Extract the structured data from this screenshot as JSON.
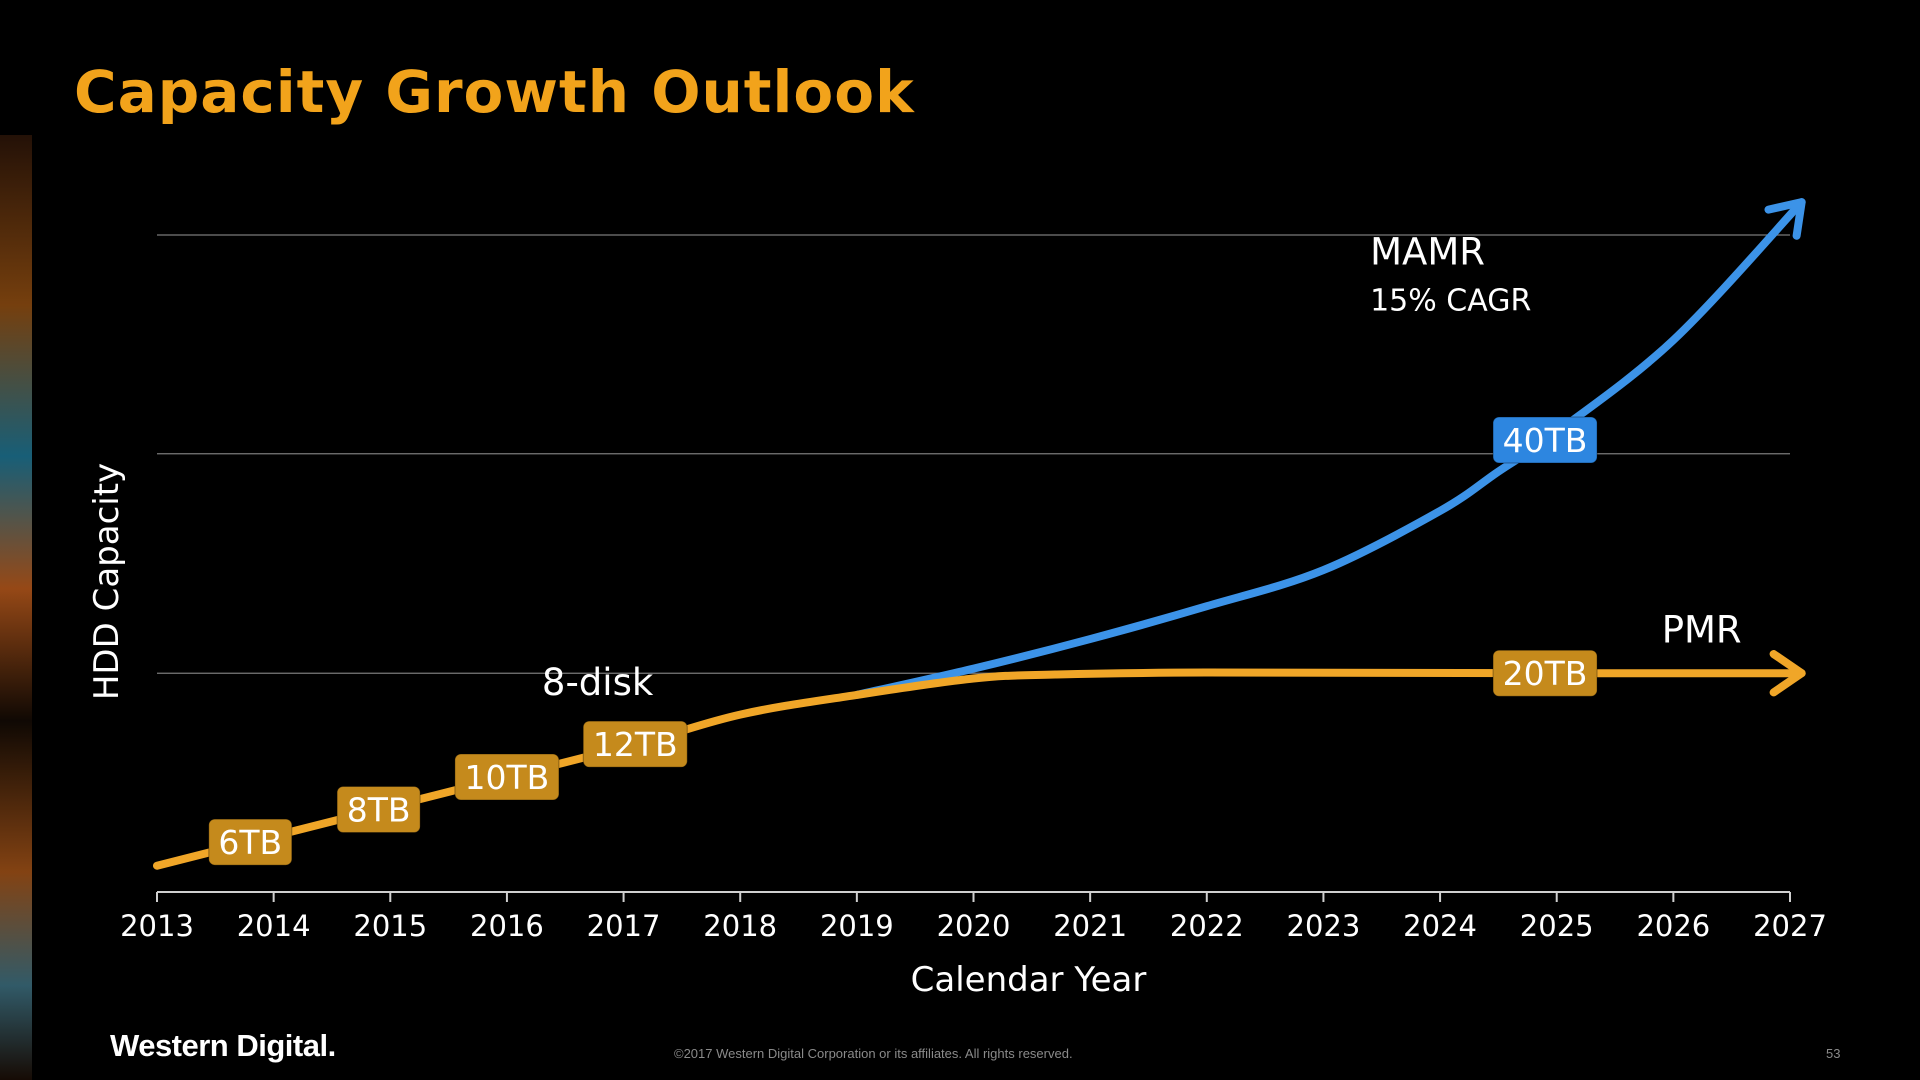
{
  "title": "Capacity Growth Outlook",
  "footer": {
    "logo": "Western Digital.",
    "copyright": "©2017 Western Digital Corporation or its affiliates. All rights reserved.",
    "page_number": "53"
  },
  "colors": {
    "title": "#f2a31b",
    "pmr": "#f0a628",
    "mamr": "#3c93e8",
    "badge_gold": "#c58a1c",
    "badge_blue": "#2d86e0",
    "grid": "#7a7a7a"
  },
  "chart_data": {
    "type": "line",
    "xlabel": "Calendar Year",
    "ylabel": "HDD Capacity",
    "xlim": [
      2013,
      2027
    ],
    "x_ticks": [
      "2013",
      "2014",
      "2015",
      "2016",
      "2017",
      "2018",
      "2019",
      "2020",
      "2021",
      "2022",
      "2023",
      "2024",
      "2025",
      "2026",
      "2027"
    ],
    "ylim": [
      0,
      1
    ],
    "y_gridlines": [
      0.333,
      0.667,
      1.0
    ],
    "grid": true,
    "y_tick_labels_shown": false,
    "series": [
      {
        "name": "PMR",
        "color": "#f0a628",
        "points": [
          [
            2013,
            0.04
          ],
          [
            2015,
            0.13
          ],
          [
            2017,
            0.22
          ],
          [
            2018,
            0.27
          ],
          [
            2019,
            0.3
          ],
          [
            2020,
            0.325
          ],
          [
            2020.7,
            0.331
          ],
          [
            2022,
            0.334
          ],
          [
            2025,
            0.333
          ],
          [
            2027.1,
            0.333
          ]
        ]
      },
      {
        "name": "MAMR",
        "color": "#3c93e8",
        "points": [
          [
            2019,
            0.3
          ],
          [
            2020,
            0.34
          ],
          [
            2021,
            0.385
          ],
          [
            2022,
            0.435
          ],
          [
            2023,
            0.49
          ],
          [
            2024,
            0.58
          ],
          [
            2024.5,
            0.64
          ],
          [
            2025,
            0.7
          ],
          [
            2026,
            0.84
          ],
          [
            2027.1,
            1.05
          ]
        ]
      }
    ],
    "badges": [
      {
        "label": "6TB",
        "x": 2013.8,
        "series": "PMR"
      },
      {
        "label": "8TB",
        "x": 2014.9,
        "series": "PMR"
      },
      {
        "label": "10TB",
        "x": 2016.0,
        "series": "PMR"
      },
      {
        "label": "12TB",
        "x": 2017.1,
        "series": "PMR"
      },
      {
        "label": "20TB",
        "x": 2024.9,
        "series": "PMR"
      },
      {
        "label": "40TB",
        "x": 2024.9,
        "series": "MAMR"
      }
    ],
    "annotations": [
      {
        "text": "8-disk",
        "x": 2016.3,
        "y": 0.3
      },
      {
        "text": "PMR",
        "x": 2025.9,
        "y": 0.38
      },
      {
        "text": "MAMR",
        "x": 2023.4,
        "y": 0.955
      },
      {
        "text": "15% CAGR",
        "x": 2023.4,
        "y": 0.885
      }
    ]
  }
}
